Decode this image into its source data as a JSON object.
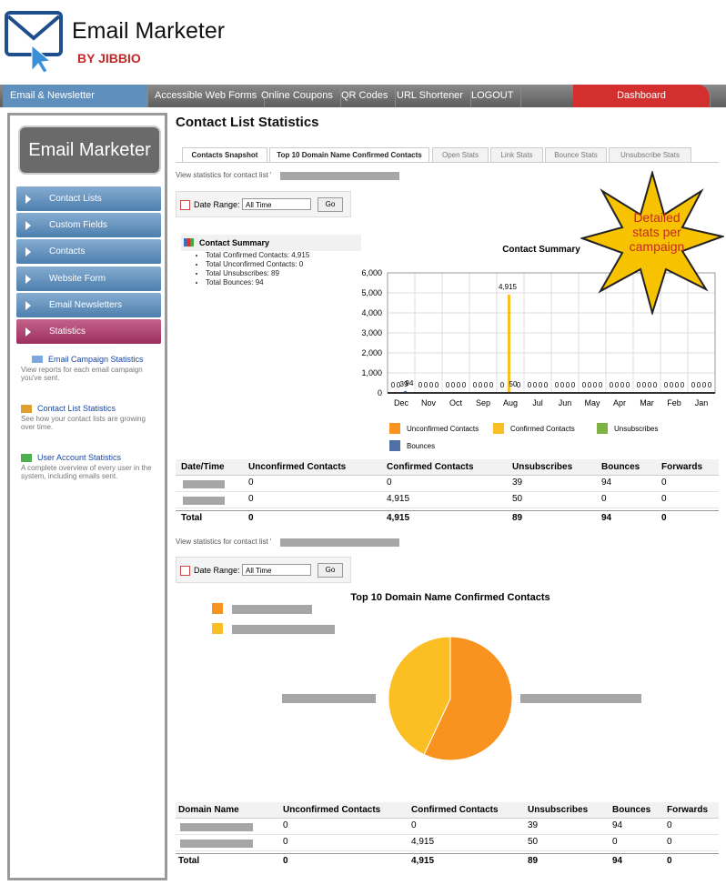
{
  "header": {
    "brand": "Email Marketer",
    "tagline": "BY JIBBIO"
  },
  "nav": {
    "items": [
      "Email & Newsletter Marketing",
      "Accessible Web Forms",
      "Online Coupons",
      "QR Codes",
      "URL Shortener",
      "LOGOUT"
    ],
    "dashboard": "Dashboard"
  },
  "sidebar": {
    "logo": "Email Marketer",
    "menu": [
      "Contact Lists",
      "Custom Fields",
      "Contacts",
      "Website Form",
      "Email Newsletters",
      "Statistics"
    ],
    "links": [
      {
        "title": "Email Campaign Statistics",
        "desc": "View reports for each email campaign you've sent."
      },
      {
        "title": "Contact List Statistics",
        "desc": "See how your contact lists are growing over time."
      },
      {
        "title": "User Account Statistics",
        "desc": "A complete overview of every user in the system, including emails sent."
      }
    ]
  },
  "page": {
    "title": "Contact List Statistics",
    "tabs": [
      "Contacts Snapshot",
      "Top 10 Domain Name Confirmed Contacts",
      "Open Stats",
      "Link Stats",
      "Bounce Stats",
      "Unsubscribe Stats"
    ],
    "view_label": "View statistics for contact list '",
    "date_range": "Date Range:",
    "date_option": "All Time",
    "go": "Go",
    "summary_title": "Contact Summary",
    "summary_items": [
      "Total Confirmed Contacts: 4,915",
      "Total Unconfirmed Contacts: 0",
      "Total Unsubscribes: 89",
      "Total Bounces: 94"
    ],
    "callout": [
      "Detailed",
      "stats per",
      "campaign"
    ],
    "tables": [
      {
        "columns": [
          "Date/Time",
          "Unconfirmed Contacts",
          "Confirmed Contacts",
          "Unsubscribes",
          "Bounces",
          "Forwards"
        ],
        "rows": [
          [
            null,
            "0",
            "0",
            "39",
            "94",
            "0"
          ],
          [
            null,
            "0",
            "4,915",
            "50",
            "0",
            "0"
          ]
        ],
        "total": [
          "Total",
          "0",
          "4,915",
          "89",
          "94",
          "0"
        ]
      },
      {
        "columns": [
          "Domain Name",
          "Unconfirmed Contacts",
          "Confirmed Contacts",
          "Unsubscribes",
          "Bounces",
          "Forwards"
        ],
        "rows": [
          [
            null,
            "0",
            "0",
            "39",
            "94",
            "0"
          ],
          [
            null,
            "0",
            "4,915",
            "50",
            "0",
            "0"
          ]
        ],
        "total": [
          "Total",
          "0",
          "4,915",
          "89",
          "94",
          "0"
        ]
      }
    ]
  },
  "chart_data": [
    {
      "type": "bar",
      "title": "Contact Summary",
      "categories": [
        "Dec",
        "Nov",
        "Oct",
        "Sep",
        "Aug",
        "Jul",
        "Jun",
        "May",
        "Apr",
        "Mar",
        "Feb",
        "Jan"
      ],
      "series": [
        {
          "name": "Unconfirmed Contacts",
          "color": "#f7931e",
          "values": [
            0,
            0,
            0,
            0,
            0,
            0,
            0,
            0,
            0,
            0,
            0,
            0
          ]
        },
        {
          "name": "Confirmed Contacts",
          "color": "#fbbf24",
          "values": [
            0,
            0,
            0,
            0,
            4915,
            0,
            0,
            0,
            0,
            0,
            0,
            0
          ],
          "value_labels": [
            "0",
            "0",
            "0",
            "0",
            "4,915",
            "0",
            "0",
            "0",
            "0",
            "0",
            "0",
            "0"
          ]
        },
        {
          "name": "Unsubscribes",
          "color": "#7cb342",
          "values": [
            39,
            0,
            0,
            0,
            50,
            0,
            0,
            0,
            0,
            0,
            0,
            0
          ]
        },
        {
          "name": "Bounces",
          "color": "#4f6fa8",
          "values": [
            94,
            0,
            0,
            0,
            0,
            0,
            0,
            0,
            0,
            0,
            0,
            0
          ]
        }
      ],
      "ylim": [
        0,
        6000
      ],
      "yticks": [
        0,
        {
          "value": 1000,
          "label": "1,000"
        },
        {
          "value": 2000,
          "label": "2,000"
        },
        {
          "value": 3000,
          "label": "3,000"
        },
        {
          "value": 4000,
          "label": "4,000"
        },
        {
          "value": 5000,
          "label": "5,000"
        },
        {
          "value": 6000,
          "label": "6,000"
        }
      ],
      "grid": true
    },
    {
      "type": "pie",
      "title": "Top 10 Domain Name Confirmed Contacts",
      "values": [
        57,
        43
      ],
      "colors": [
        "#f7931e",
        "#fbbf24"
      ]
    }
  ]
}
